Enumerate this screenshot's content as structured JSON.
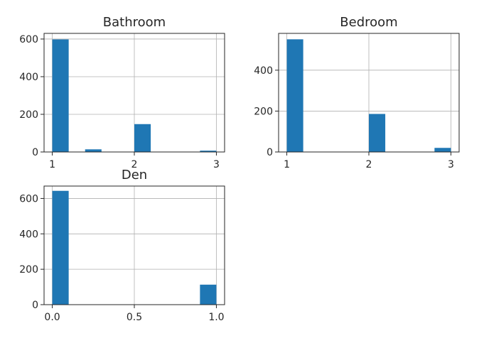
{
  "chart_data": [
    {
      "type": "bar",
      "title": "Bathroom",
      "xlabel": "",
      "ylabel": "",
      "xlim": [
        0.9,
        3.1
      ],
      "ylim": [
        0,
        630
      ],
      "x_ticks": [
        1,
        2,
        3
      ],
      "x_tick_labels": [
        "1",
        "2",
        "3"
      ],
      "y_ticks": [
        0,
        200,
        400,
        600
      ],
      "y_tick_labels": [
        "0",
        "200",
        "400",
        "600"
      ],
      "grid": true,
      "color": "#1f77b4",
      "bins": [
        {
          "x0": 1.0,
          "x1": 1.2,
          "count": 598
        },
        {
          "x0": 1.4,
          "x1": 1.6,
          "count": 14
        },
        {
          "x0": 2.0,
          "x1": 2.2,
          "count": 148
        },
        {
          "x0": 2.8,
          "x1": 3.0,
          "count": 7
        }
      ]
    },
    {
      "type": "bar",
      "title": "Bedroom",
      "xlabel": "",
      "ylabel": "",
      "xlim": [
        0.9,
        3.1
      ],
      "ylim": [
        0,
        580
      ],
      "x_ticks": [
        1,
        2,
        3
      ],
      "x_tick_labels": [
        "1",
        "2",
        "3"
      ],
      "y_ticks": [
        0,
        200,
        400
      ],
      "y_tick_labels": [
        "0",
        "200",
        "400"
      ],
      "grid": true,
      "color": "#1f77b4",
      "bins": [
        {
          "x0": 1.0,
          "x1": 1.2,
          "count": 551
        },
        {
          "x0": 2.0,
          "x1": 2.2,
          "count": 186
        },
        {
          "x0": 2.8,
          "x1": 3.0,
          "count": 20
        }
      ]
    },
    {
      "type": "bar",
      "title": "Den",
      "xlabel": "",
      "ylabel": "",
      "xlim": [
        -0.05,
        1.05
      ],
      "ylim": [
        0,
        670
      ],
      "x_ticks": [
        0.0,
        0.5,
        1.0
      ],
      "x_tick_labels": [
        "0.0",
        "0.5",
        "1.0"
      ],
      "y_ticks": [
        0,
        200,
        400,
        600
      ],
      "y_tick_labels": [
        "0",
        "200",
        "400",
        "600"
      ],
      "grid": true,
      "color": "#1f77b4",
      "bins": [
        {
          "x0": 0.0,
          "x1": 0.1,
          "count": 643
        },
        {
          "x0": 0.9,
          "x1": 1.0,
          "count": 113
        }
      ]
    }
  ]
}
